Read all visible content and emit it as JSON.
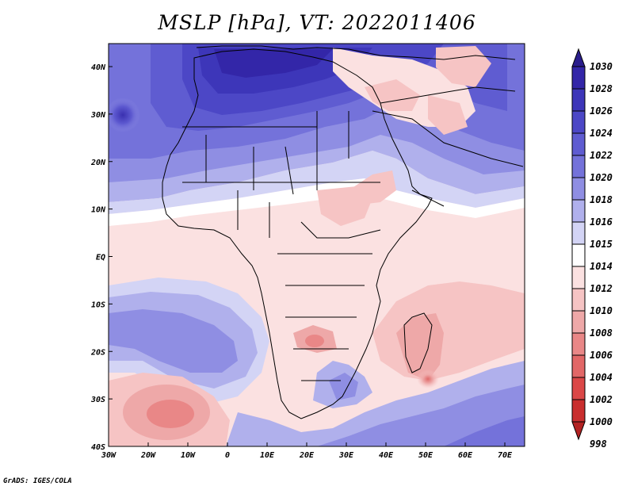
{
  "title": "MSLP [hPa], VT: 2022011406",
  "credit": "GrADS: IGES/COLA",
  "map": {
    "type": "filled-contour",
    "variable": "Mean sea level pressure",
    "units": "hPa",
    "valid_time": "2022011406",
    "region": "Africa",
    "lon_range": [
      -30,
      75
    ],
    "lat_range": [
      -40,
      45
    ]
  },
  "lon_ticks": [
    "30W",
    "20W",
    "10W",
    "0",
    "10E",
    "20E",
    "30E",
    "40E",
    "50E",
    "60E",
    "70E"
  ],
  "lat_ticks": [
    "40N",
    "30N",
    "20N",
    "10N",
    "EQ",
    "10S",
    "20S",
    "30S",
    "40S"
  ],
  "colorbar": {
    "levels": [
      {
        "label": "1030",
        "color": "#2a1d8c"
      },
      {
        "label": "1028",
        "color": "#3326a8"
      },
      {
        "label": "1026",
        "color": "#3d36b9"
      },
      {
        "label": "1024",
        "color": "#4c47c6"
      },
      {
        "label": "1022",
        "color": "#5f5cd1"
      },
      {
        "label": "1020",
        "color": "#7472da"
      },
      {
        "label": "1018",
        "color": "#8f8ee3"
      },
      {
        "label": "1016",
        "color": "#b0b0ec"
      },
      {
        "label": "1015",
        "color": "#d3d4f5"
      },
      {
        "label": "1014",
        "color": "#ffffff"
      },
      {
        "label": "1012",
        "color": "#fbe1e1"
      },
      {
        "label": "1010",
        "color": "#f6c4c4"
      },
      {
        "label": "1008",
        "color": "#eea8a8"
      },
      {
        "label": "1006",
        "color": "#e98787"
      },
      {
        "label": "1004",
        "color": "#e26767"
      },
      {
        "label": "1002",
        "color": "#db4747"
      },
      {
        "label": "1000",
        "color": "#c92e2e"
      },
      {
        "label": "998",
        "color": "#b22222"
      }
    ],
    "top_arrow_color": "#2a1d8c",
    "bottom_arrow_color": "#b22222"
  }
}
